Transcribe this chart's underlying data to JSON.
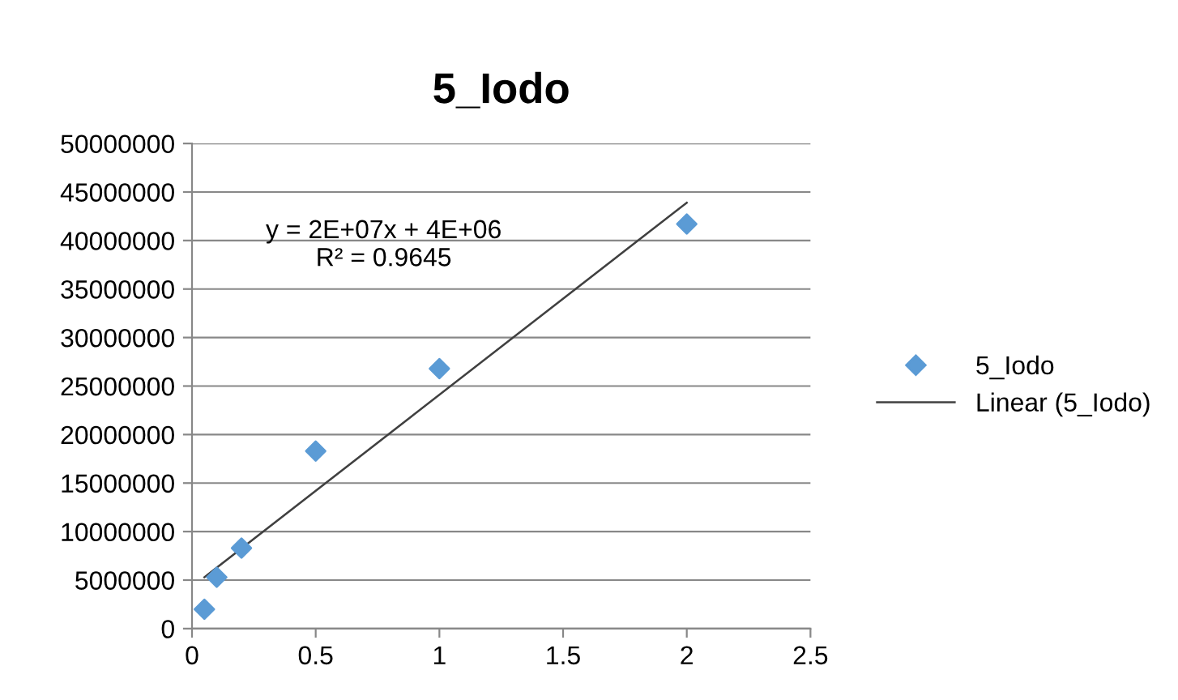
{
  "chart_data": {
    "type": "scatter",
    "title": "5_Iodo",
    "series": [
      {
        "name": "5_Iodo",
        "color": "#5b9bd5",
        "marker": "diamond",
        "x": [
          0.05,
          0.1,
          0.2,
          0.5,
          1,
          2
        ],
        "values": [
          2000000,
          5300000,
          8300000,
          18300000,
          26800000,
          41700000
        ]
      },
      {
        "name": "Linear (5_Iodo)",
        "type": "line",
        "color": "#404040",
        "marker": "none",
        "line_style": "solid",
        "x": [
          0.05,
          2
        ],
        "values": [
          5300000,
          43900000
        ]
      }
    ],
    "annotations": [
      "y = 2E+07x + 4E+06\nR² = 0.9645"
    ],
    "xlim": [
      0,
      2.5
    ],
    "xticks": [
      0,
      0.5,
      1,
      1.5,
      2,
      2.5
    ],
    "ylim": [
      0,
      50000000
    ],
    "yticks": [
      0,
      5000000,
      10000000,
      15000000,
      20000000,
      25000000,
      30000000,
      35000000,
      40000000,
      45000000,
      50000000
    ],
    "grid": "y",
    "legend": "right"
  }
}
